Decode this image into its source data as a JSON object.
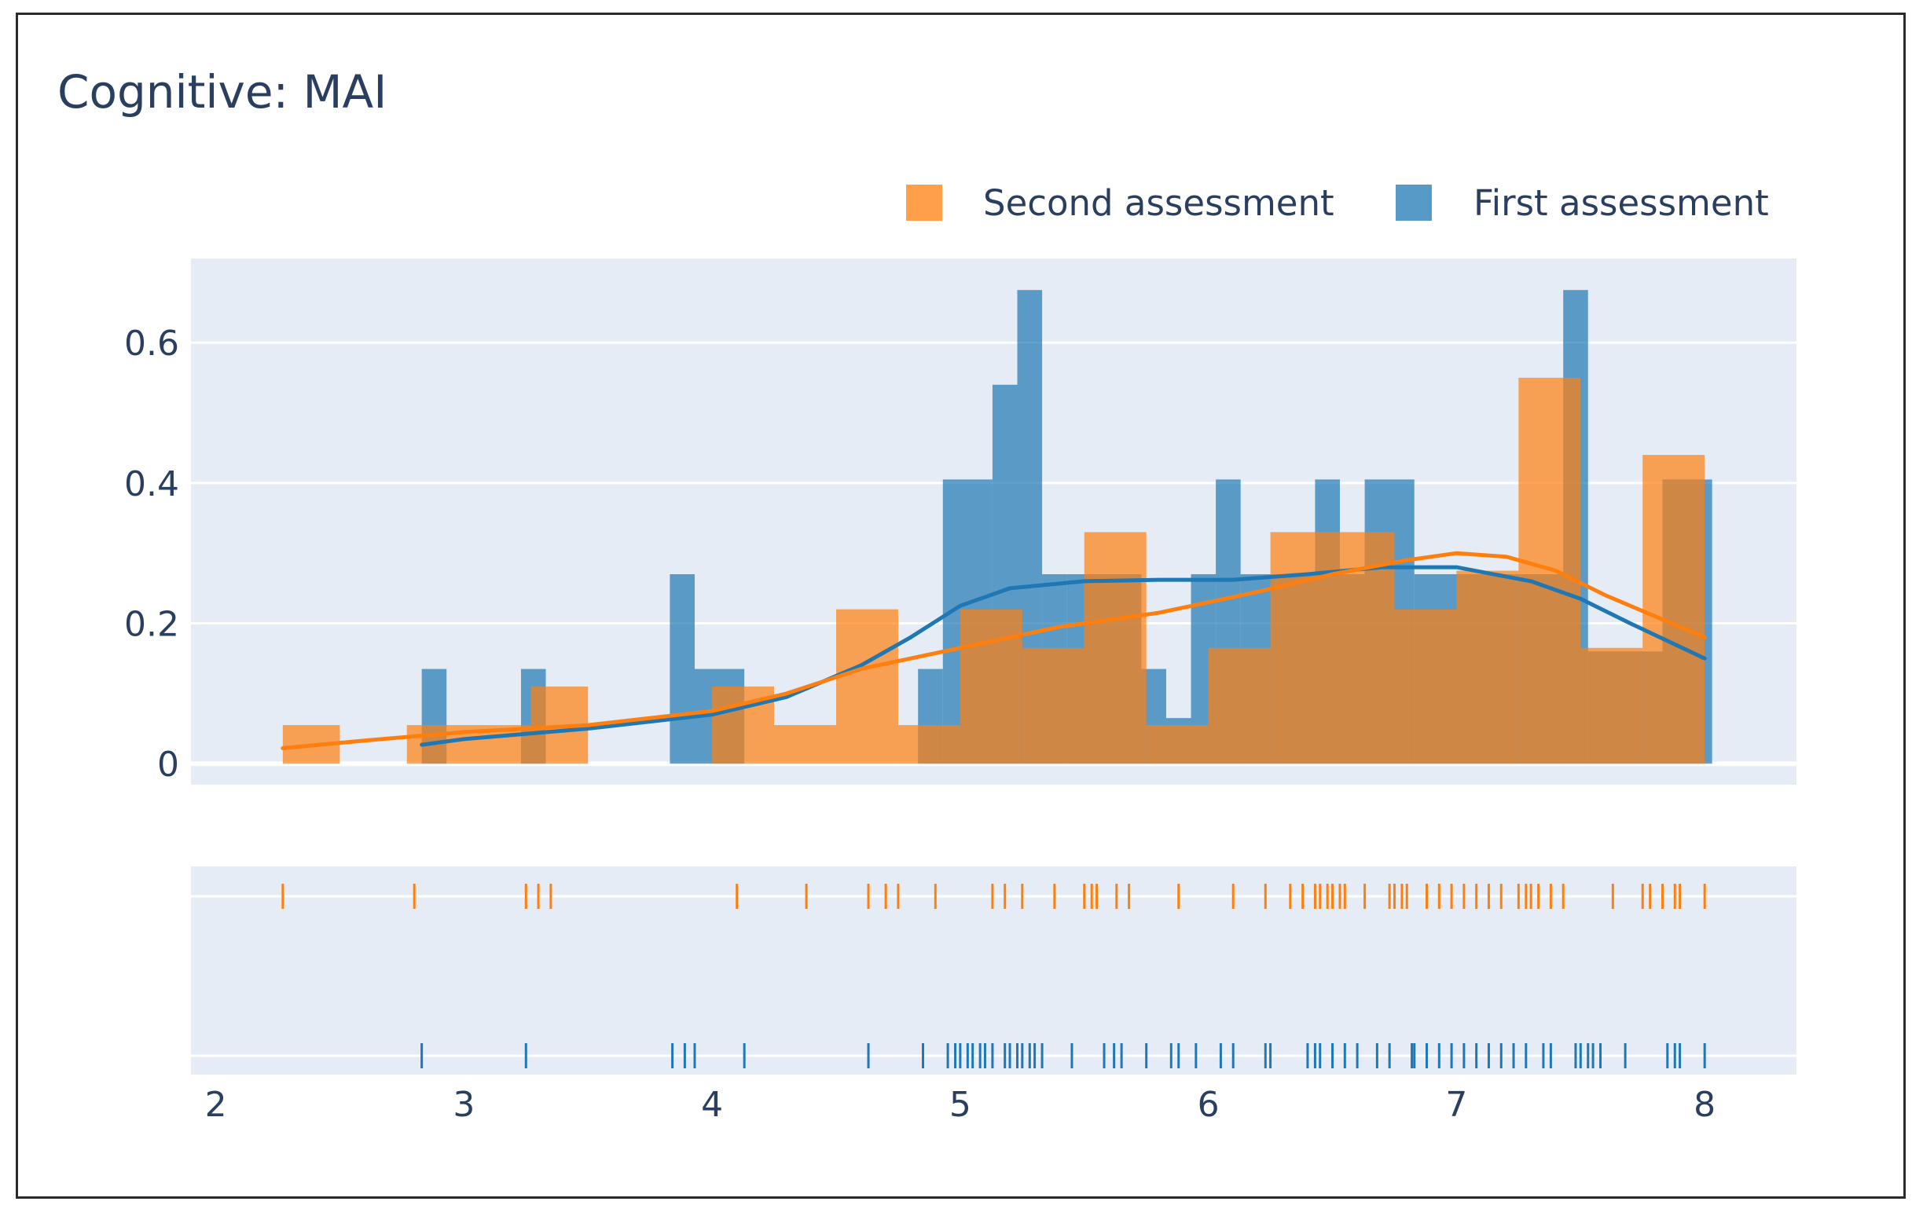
{
  "chart_data": {
    "type": "histogram",
    "title": "Cognitive: MAI",
    "xlabel": "",
    "ylabel": "",
    "xlim": [
      1.9,
      8.37
    ],
    "ylim": [
      -0.03,
      0.72
    ],
    "x_ticks": [
      2,
      3,
      4,
      5,
      6,
      7,
      8
    ],
    "y_ticks": [
      0,
      0.2,
      0.4,
      0.6
    ],
    "y_tick_labels": [
      "0",
      "0.2",
      "0.4",
      "0.6"
    ],
    "grid": true,
    "legend": {
      "position": "top-right",
      "entries": [
        {
          "name": "Second assessment",
          "color": "#ff7f0e"
        },
        {
          "name": "First assessment",
          "color": "#1f77b4"
        }
      ]
    },
    "series": [
      {
        "name": "First assessment",
        "color": "#1f77b4",
        "opacity": 0.7,
        "histogram": [
          {
            "x0": 2.83,
            "x1": 2.93,
            "y": 0.135
          },
          {
            "x0": 3.23,
            "x1": 3.33,
            "y": 0.135
          },
          {
            "x0": 3.83,
            "x1": 3.93,
            "y": 0.27
          },
          {
            "x0": 3.93,
            "x1": 4.13,
            "y": 0.135
          },
          {
            "x0": 4.83,
            "x1": 4.93,
            "y": 0.135
          },
          {
            "x0": 4.93,
            "x1": 5.13,
            "y": 0.405
          },
          {
            "x0": 5.13,
            "x1": 5.23,
            "y": 0.54
          },
          {
            "x0": 5.23,
            "x1": 5.33,
            "y": 0.675
          },
          {
            "x0": 5.33,
            "x1": 5.43,
            "y": 0.27
          },
          {
            "x0": 5.43,
            "x1": 5.73,
            "y": 0.27
          },
          {
            "x0": 5.73,
            "x1": 5.83,
            "y": 0.135
          },
          {
            "x0": 5.83,
            "x1": 5.93,
            "y": 0.065
          },
          {
            "x0": 5.93,
            "x1": 6.03,
            "y": 0.27
          },
          {
            "x0": 6.03,
            "x1": 6.13,
            "y": 0.405
          },
          {
            "x0": 6.13,
            "x1": 6.43,
            "y": 0.27
          },
          {
            "x0": 6.43,
            "x1": 6.53,
            "y": 0.405
          },
          {
            "x0": 6.53,
            "x1": 6.63,
            "y": 0.27
          },
          {
            "x0": 6.63,
            "x1": 6.83,
            "y": 0.405
          },
          {
            "x0": 6.83,
            "x1": 7.03,
            "y": 0.27
          },
          {
            "x0": 7.03,
            "x1": 7.23,
            "y": 0.27
          },
          {
            "x0": 7.23,
            "x1": 7.43,
            "y": 0.27
          },
          {
            "x0": 7.43,
            "x1": 7.53,
            "y": 0.675
          },
          {
            "x0": 7.53,
            "x1": 7.83,
            "y": 0.16
          },
          {
            "x0": 7.83,
            "x1": 8.03,
            "y": 0.405
          }
        ],
        "kde": {
          "x": [
            2.83,
            3.0,
            3.5,
            4.0,
            4.3,
            4.6,
            4.8,
            5.0,
            5.2,
            5.5,
            5.8,
            6.1,
            6.4,
            6.7,
            7.0,
            7.3,
            7.5,
            7.7,
            8.0
          ],
          "y": [
            0.027,
            0.035,
            0.05,
            0.07,
            0.095,
            0.14,
            0.18,
            0.225,
            0.25,
            0.26,
            0.262,
            0.262,
            0.27,
            0.28,
            0.28,
            0.26,
            0.235,
            0.2,
            0.15
          ]
        },
        "rug": [
          2.83,
          3.25,
          3.84,
          3.89,
          3.93,
          4.13,
          4.63,
          4.85,
          4.95,
          4.98,
          5.0,
          5.03,
          5.05,
          5.08,
          5.1,
          5.13,
          5.18,
          5.2,
          5.23,
          5.25,
          5.28,
          5.3,
          5.33,
          5.45,
          5.58,
          5.62,
          5.65,
          5.75,
          5.85,
          5.88,
          5.95,
          6.05,
          6.1,
          6.23,
          6.25,
          6.4,
          6.43,
          6.45,
          6.5,
          6.55,
          6.6,
          6.68,
          6.73,
          6.82,
          6.83,
          6.88,
          6.93,
          6.98,
          7.03,
          7.08,
          7.13,
          7.18,
          7.23,
          7.28,
          7.35,
          7.38,
          7.48,
          7.5,
          7.53,
          7.55,
          7.58,
          7.68,
          7.85,
          7.88,
          7.9,
          8.0
        ]
      },
      {
        "name": "Second assessment",
        "color": "#ff7f0e",
        "opacity": 0.7,
        "histogram": [
          {
            "x0": 2.27,
            "x1": 2.5,
            "y": 0.055
          },
          {
            "x0": 2.77,
            "x1": 3.27,
            "y": 0.055
          },
          {
            "x0": 3.27,
            "x1": 3.5,
            "y": 0.11
          },
          {
            "x0": 4.0,
            "x1": 4.25,
            "y": 0.11
          },
          {
            "x0": 4.25,
            "x1": 4.5,
            "y": 0.055
          },
          {
            "x0": 4.5,
            "x1": 4.75,
            "y": 0.22
          },
          {
            "x0": 4.75,
            "x1": 5.0,
            "y": 0.055
          },
          {
            "x0": 5.0,
            "x1": 5.25,
            "y": 0.22
          },
          {
            "x0": 5.25,
            "x1": 5.5,
            "y": 0.165
          },
          {
            "x0": 5.5,
            "x1": 5.75,
            "y": 0.33
          },
          {
            "x0": 5.75,
            "x1": 6.0,
            "y": 0.055
          },
          {
            "x0": 6.0,
            "x1": 6.25,
            "y": 0.165
          },
          {
            "x0": 6.25,
            "x1": 6.75,
            "y": 0.33
          },
          {
            "x0": 6.75,
            "x1": 7.0,
            "y": 0.22
          },
          {
            "x0": 7.0,
            "x1": 7.25,
            "y": 0.275
          },
          {
            "x0": 7.25,
            "x1": 7.5,
            "y": 0.55
          },
          {
            "x0": 7.5,
            "x1": 7.75,
            "y": 0.165
          },
          {
            "x0": 7.75,
            "x1": 8.0,
            "y": 0.44
          }
        ],
        "kde": {
          "x": [
            2.27,
            2.6,
            3.0,
            3.5,
            4.0,
            4.3,
            4.6,
            5.0,
            5.4,
            5.8,
            6.2,
            6.5,
            6.8,
            7.0,
            7.2,
            7.4,
            7.6,
            7.8,
            8.0
          ],
          "y": [
            0.022,
            0.033,
            0.045,
            0.055,
            0.075,
            0.1,
            0.135,
            0.165,
            0.195,
            0.215,
            0.245,
            0.27,
            0.29,
            0.3,
            0.295,
            0.275,
            0.24,
            0.21,
            0.18
          ]
        },
        "rug": [
          2.27,
          2.8,
          3.25,
          3.3,
          3.35,
          4.1,
          4.38,
          4.63,
          4.7,
          4.75,
          4.9,
          5.13,
          5.18,
          5.25,
          5.38,
          5.5,
          5.53,
          5.55,
          5.63,
          5.68,
          5.88,
          6.1,
          6.23,
          6.33,
          6.38,
          6.43,
          6.45,
          6.48,
          6.5,
          6.53,
          6.55,
          6.63,
          6.73,
          6.75,
          6.78,
          6.8,
          6.88,
          6.93,
          6.98,
          7.03,
          7.08,
          7.13,
          7.18,
          7.25,
          7.28,
          7.3,
          7.33,
          7.38,
          7.43,
          7.63,
          7.75,
          7.78,
          7.83,
          7.88,
          7.9,
          8.0
        ]
      }
    ]
  }
}
